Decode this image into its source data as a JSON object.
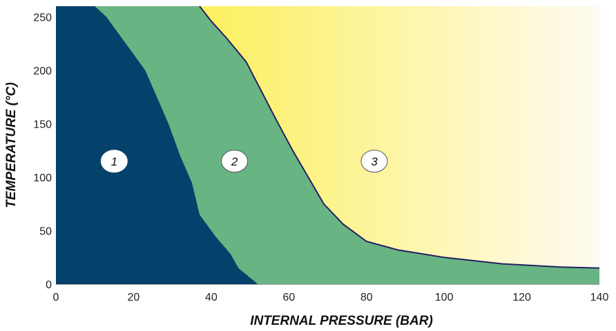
{
  "chart_data": {
    "type": "area",
    "title": "",
    "xlabel": "INTERNAL PRESSURE (BAR)",
    "ylabel": "TEMPERATURE (°C)",
    "xlim": [
      0,
      140
    ],
    "ylim": [
      0,
      260
    ],
    "xticks": [
      "0",
      "20",
      "40",
      "60",
      "80",
      "100",
      "120",
      "140"
    ],
    "yticks": [
      "0",
      "50",
      "100",
      "150",
      "200",
      "250"
    ],
    "grid": false,
    "legend": "none",
    "regions": [
      {
        "label": "1",
        "label_pos": [
          15,
          115
        ],
        "color": "#04416b",
        "boundary": [
          [
            0,
            260
          ],
          [
            10,
            260
          ],
          [
            13,
            250
          ],
          [
            18,
            225
          ],
          [
            23,
            200
          ],
          [
            26,
            175
          ],
          [
            29,
            150
          ],
          [
            32,
            120
          ],
          [
            35,
            95
          ],
          [
            37,
            65
          ],
          [
            41,
            45
          ],
          [
            45,
            28
          ],
          [
            47,
            15
          ],
          [
            50,
            6
          ],
          [
            52,
            0
          ]
        ]
      },
      {
        "label": "2",
        "label_pos": [
          46,
          115
        ],
        "color": "#68b482",
        "boundary": [
          [
            37,
            260
          ],
          [
            40,
            246
          ],
          [
            44,
            230
          ],
          [
            49,
            208
          ],
          [
            53,
            180
          ],
          [
            57,
            152
          ],
          [
            61,
            125
          ],
          [
            65,
            100
          ],
          [
            69,
            75
          ],
          [
            74,
            56
          ],
          [
            80,
            40
          ],
          [
            88,
            32
          ],
          [
            100,
            25
          ],
          [
            115,
            19
          ],
          [
            130,
            16
          ],
          [
            140,
            15
          ]
        ]
      },
      {
        "label": "3",
        "label_pos": [
          82,
          115
        ],
        "color_from": "#fbec28",
        "color_to": "#fefbf1"
      }
    ]
  }
}
